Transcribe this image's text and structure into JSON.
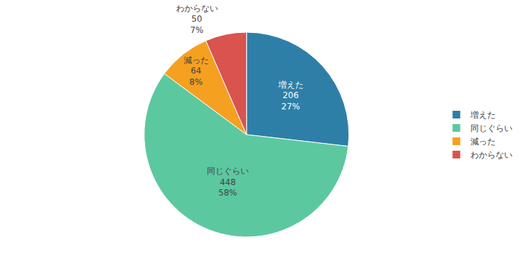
{
  "chart_data": {
    "type": "pie",
    "categories": [
      "増えた",
      "同じぐらい",
      "減った",
      "わからない"
    ],
    "values": [
      206,
      448,
      64,
      50
    ],
    "percentages": [
      27,
      58,
      8,
      7
    ],
    "percentage_labels": [
      "27%",
      "58%",
      "8%",
      "7%"
    ],
    "colors": [
      "#2E7FA8",
      "#5CC8A0",
      "#F5A020",
      "#D9534F"
    ],
    "data_labels": true,
    "legend": "right"
  }
}
